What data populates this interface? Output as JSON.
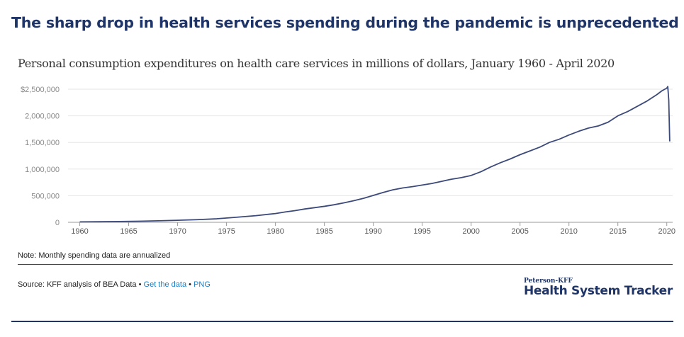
{
  "headline": "The sharp drop in health services spending during the pandemic is unprecedented",
  "chart_data": {
    "type": "line",
    "title": "Personal consumption expenditures on health care services in millions of dollars, January 1960 - April 2020",
    "xlim": [
      1958.8,
      2020.6
    ],
    "ylim": [
      0,
      2500000
    ],
    "y_ticks": [
      {
        "value": 0,
        "label": "0"
      },
      {
        "value": 500000,
        "label": "500,000"
      },
      {
        "value": 1000000,
        "label": "1,000,000"
      },
      {
        "value": 1500000,
        "label": "1,500,000"
      },
      {
        "value": 2000000,
        "label": "2,000,000"
      },
      {
        "value": 2500000,
        "label": "$2,500,000"
      }
    ],
    "x_ticks": [
      1960,
      1965,
      1970,
      1975,
      1980,
      1985,
      1990,
      1995,
      2000,
      2005,
      2010,
      2015,
      2020
    ],
    "grid": true,
    "line_color": "#3c4a7a",
    "series": [
      {
        "x": [
          1960,
          1962,
          1964,
          1966,
          1968,
          1970,
          1972,
          1974,
          1976,
          1978,
          1980,
          1981,
          1982,
          1983,
          1984,
          1985,
          1986,
          1987,
          1988,
          1989,
          1990,
          1991,
          1992,
          1993,
          1994,
          1995,
          1996,
          1997,
          1998,
          1999,
          2000,
          2001,
          2002,
          2003,
          2004,
          2005,
          2006,
          2007,
          2008,
          2009,
          2010,
          2011,
          2012,
          2013,
          2014,
          2015,
          2016,
          2017,
          2018,
          2019,
          2019.5,
          2020.0,
          2020.1,
          2020.2,
          2020.3
        ],
        "values": [
          8000,
          11000,
          15000,
          20000,
          28000,
          38000,
          50000,
          66000,
          95000,
          125000,
          165000,
          195000,
          220000,
          250000,
          275000,
          300000,
          330000,
          365000,
          405000,
          450000,
          505000,
          560000,
          610000,
          645000,
          670000,
          700000,
          730000,
          770000,
          810000,
          840000,
          880000,
          950000,
          1040000,
          1120000,
          1190000,
          1270000,
          1340000,
          1410000,
          1500000,
          1560000,
          1640000,
          1710000,
          1770000,
          1810000,
          1880000,
          2000000,
          2080000,
          2180000,
          2280000,
          2400000,
          2470000,
          2520000,
          2550000,
          2300000,
          1520000
        ]
      }
    ]
  },
  "footer": {
    "note": "Note: Monthly spending data are annualized",
    "source_prefix": "Source: KFF analysis of BEA Data",
    "bullet": "•",
    "get_data": "Get the data",
    "png": "PNG",
    "brand_top": "Peterson-KFF",
    "brand_main": "Health System Tracker"
  }
}
